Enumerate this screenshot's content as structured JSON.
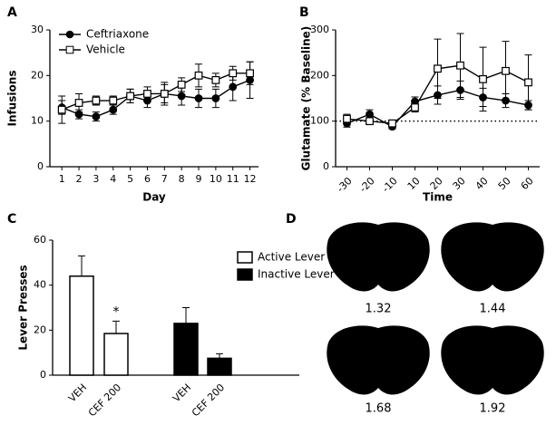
{
  "chart_data": [
    {
      "type": "line",
      "panel": "A",
      "x_label": "Day",
      "y_label": "Infusions",
      "x": [
        1,
        2,
        3,
        4,
        5,
        6,
        7,
        8,
        9,
        10,
        11,
        12
      ],
      "xlim": [
        0.3,
        12.5
      ],
      "xticks": [
        1,
        2,
        3,
        4,
        5,
        6,
        7,
        8,
        9,
        10,
        11,
        12
      ],
      "ylim": [
        0,
        30
      ],
      "yticks": [
        0,
        10,
        20,
        30
      ],
      "legend": "upper left",
      "series": [
        {
          "name": "Ceftriaxone",
          "color": "#000000",
          "marker": "circle",
          "filled": true,
          "values": [
            13,
            11.5,
            11,
            12.5,
            15.5,
            14.5,
            16,
            15.5,
            15,
            15,
            17.5,
            19
          ],
          "errors": [
            1.5,
            1,
            1,
            1,
            1.5,
            1.5,
            2,
            2,
            2,
            2,
            3,
            4
          ]
        },
        {
          "name": "Vehicle",
          "color": "#000000",
          "marker": "square",
          "filled": false,
          "values": [
            12.5,
            14,
            14.5,
            14.5,
            15.5,
            16,
            16,
            18,
            20,
            19,
            20.5,
            20.5
          ],
          "errors": [
            3,
            2,
            1,
            1,
            1.5,
            1.5,
            2.5,
            1.5,
            2.5,
            1.5,
            1.5,
            2.5
          ]
        }
      ]
    },
    {
      "type": "line",
      "panel": "B",
      "x_label": "Time",
      "y_label": "Glutamate (% Baseline)",
      "categories": [
        "-30",
        "-20",
        "-10",
        "10",
        "20",
        "30",
        "40",
        "50",
        "60"
      ],
      "ylim": [
        0,
        300
      ],
      "yticks": [
        0,
        100,
        200,
        300
      ],
      "reference_line": 100,
      "series": [
        {
          "color": "#000000",
          "marker": "circle",
          "filled": true,
          "values": [
            95,
            115,
            88,
            143,
            157,
            168,
            152,
            145,
            135
          ],
          "errors": [
            8,
            10,
            5,
            10,
            20,
            20,
            20,
            15,
            10
          ]
        },
        {
          "color": "#000000",
          "marker": "square",
          "filled": false,
          "values": [
            105,
            100,
            95,
            130,
            215,
            222,
            192,
            210,
            185
          ],
          "errors": [
            10,
            5,
            5,
            10,
            65,
            70,
            70,
            65,
            60
          ]
        }
      ]
    },
    {
      "type": "bar",
      "panel": "C",
      "y_label": "Lever Presses",
      "categories": [
        "VEH",
        "CEF 200",
        "VEH",
        "CEF 200"
      ],
      "ylim": [
        0,
        60
      ],
      "yticks": [
        0,
        20,
        40,
        60
      ],
      "annotation": "*",
      "legend": "upper right",
      "series": [
        {
          "name": "Active Lever",
          "color": "#ffffff",
          "values": [
            44,
            18.5,
            null,
            null
          ],
          "errors": [
            9,
            5.5,
            null,
            null
          ]
        },
        {
          "name": "Inactive Lever",
          "color": "#000000",
          "values": [
            null,
            null,
            23,
            7.5
          ],
          "errors": [
            null,
            null,
            7,
            2
          ]
        }
      ]
    }
  ],
  "diagram": {
    "panel": "D",
    "sections": [
      "1.32",
      "1.44",
      "1.68",
      "1.92"
    ]
  }
}
